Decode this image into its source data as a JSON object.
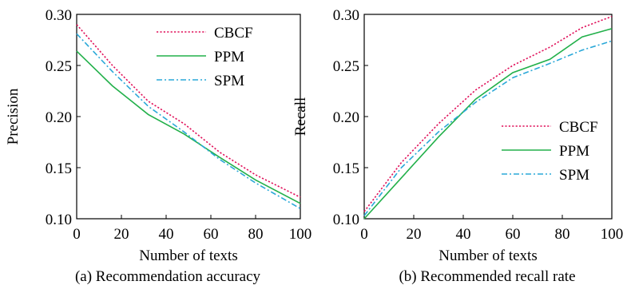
{
  "chart_data": [
    {
      "type": "line",
      "caption": "(a) Recommendation accuracy",
      "xlabel": "Number of texts",
      "ylabel": "Precision",
      "xlim": [
        0,
        100
      ],
      "ylim": [
        0.1,
        0.3
      ],
      "xticks": [
        0,
        20,
        40,
        60,
        80,
        100
      ],
      "yticks": [
        0.1,
        0.15,
        0.2,
        0.25,
        0.3
      ],
      "ytick_labels": [
        "0.10",
        "0.15",
        "0.20",
        "0.25",
        "0.30"
      ],
      "grid": false,
      "legend_position": "top-right",
      "series": [
        {
          "name": "CBCF",
          "color": "#e0105a",
          "dash": "dotted",
          "x": [
            0,
            16,
            32,
            48,
            64,
            80,
            100
          ],
          "y": [
            0.29,
            0.25,
            0.215,
            0.193,
            0.165,
            0.143,
            0.121
          ]
        },
        {
          "name": "PPM",
          "color": "#22b04a",
          "dash": "solid",
          "x": [
            0,
            16,
            32,
            48,
            64,
            80,
            100
          ],
          "y": [
            0.264,
            0.23,
            0.202,
            0.183,
            0.16,
            0.138,
            0.115
          ]
        },
        {
          "name": "SPM",
          "color": "#2aa8d8",
          "dash": "dashdot",
          "x": [
            0,
            16,
            32,
            48,
            64,
            80,
            100
          ],
          "y": [
            0.281,
            0.244,
            0.21,
            0.185,
            0.158,
            0.135,
            0.11
          ]
        }
      ]
    },
    {
      "type": "line",
      "caption": "(b) Recommended recall rate",
      "xlabel": "Number of texts",
      "ylabel": "Recall",
      "xlim": [
        0,
        100
      ],
      "ylim": [
        0.1,
        0.3
      ],
      "xticks": [
        0,
        20,
        40,
        60,
        80,
        100
      ],
      "yticks": [
        0.1,
        0.15,
        0.2,
        0.25,
        0.3
      ],
      "ytick_labels": [
        "0.10",
        "0.15",
        "0.20",
        "0.25",
        "0.30"
      ],
      "grid": false,
      "legend_position": "center-right",
      "series": [
        {
          "name": "CBCF",
          "color": "#e0105a",
          "dash": "dotted",
          "x": [
            0,
            15,
            30,
            45,
            60,
            75,
            88,
            100
          ],
          "y": [
            0.107,
            0.155,
            0.193,
            0.226,
            0.25,
            0.268,
            0.287,
            0.298
          ]
        },
        {
          "name": "PPM",
          "color": "#22b04a",
          "dash": "solid",
          "x": [
            0,
            15,
            30,
            45,
            60,
            75,
            88,
            100
          ],
          "y": [
            0.1,
            0.14,
            0.18,
            0.217,
            0.243,
            0.256,
            0.278,
            0.286
          ]
        },
        {
          "name": "SPM",
          "color": "#2aa8d8",
          "dash": "dashdot",
          "x": [
            0,
            15,
            30,
            45,
            60,
            75,
            88,
            100
          ],
          "y": [
            0.103,
            0.15,
            0.185,
            0.214,
            0.238,
            0.252,
            0.265,
            0.274
          ]
        }
      ]
    }
  ]
}
